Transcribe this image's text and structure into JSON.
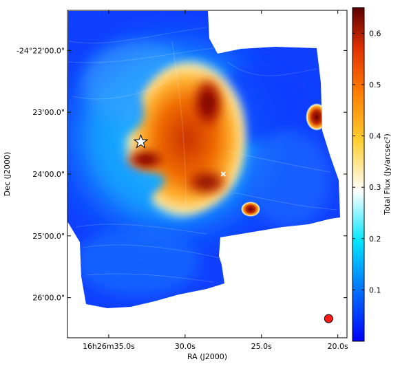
{
  "chart_data": {
    "type": "heatmap",
    "xlabel": "RA (J2000)",
    "ylabel": "Dec (J2000)",
    "colorbar_label": "Total Flux (Jy/arcsec²)",
    "x_ticks": [
      {
        "label": "16h26m35.0s",
        "ra_sec": 35.0
      },
      {
        "label": "30.0s",
        "ra_sec": 30.0
      },
      {
        "label": "25.0s",
        "ra_sec": 25.0
      },
      {
        "label": "20.0s",
        "ra_sec": 20.0
      }
    ],
    "y_ticks": [
      {
        "label": "-24°22'00.0\"",
        "dec_min": 22.0
      },
      {
        "label": "23'00.0\"",
        "dec_min": 23.0
      },
      {
        "label": "24'00.0\"",
        "dec_min": 24.0
      },
      {
        "label": "25'00.0\"",
        "dec_min": 25.0
      },
      {
        "label": "26'00.0\"",
        "dec_min": 26.0
      }
    ],
    "xlim_ra_sec": [
      37.7,
      19.4
    ],
    "ylim_dec_min": [
      21.35,
      26.65
    ],
    "colorbar": {
      "range": [
        0.0,
        0.65
      ],
      "ticks": [
        0.1,
        0.2,
        0.3,
        0.4,
        0.5,
        0.6
      ],
      "tick_labels": [
        "0.1",
        "0.2",
        "0.3",
        "0.4",
        "0.5",
        "0.6"
      ],
      "colormap": [
        "#0000ff",
        "#0070ff",
        "#00e5ff",
        "#ffffff",
        "#ffcf30",
        "#ff7a00",
        "#e03000",
        "#5a0000"
      ]
    },
    "markers": [
      {
        "type": "star",
        "ra_sec": 32.9,
        "dec_min": 23.48
      },
      {
        "type": "x",
        "ra_sec": 27.5,
        "dec_min": 24.0
      },
      {
        "type": "beam",
        "ra_sec": 20.6,
        "dec_min": 26.34,
        "color": "#ff1a1a"
      }
    ]
  }
}
